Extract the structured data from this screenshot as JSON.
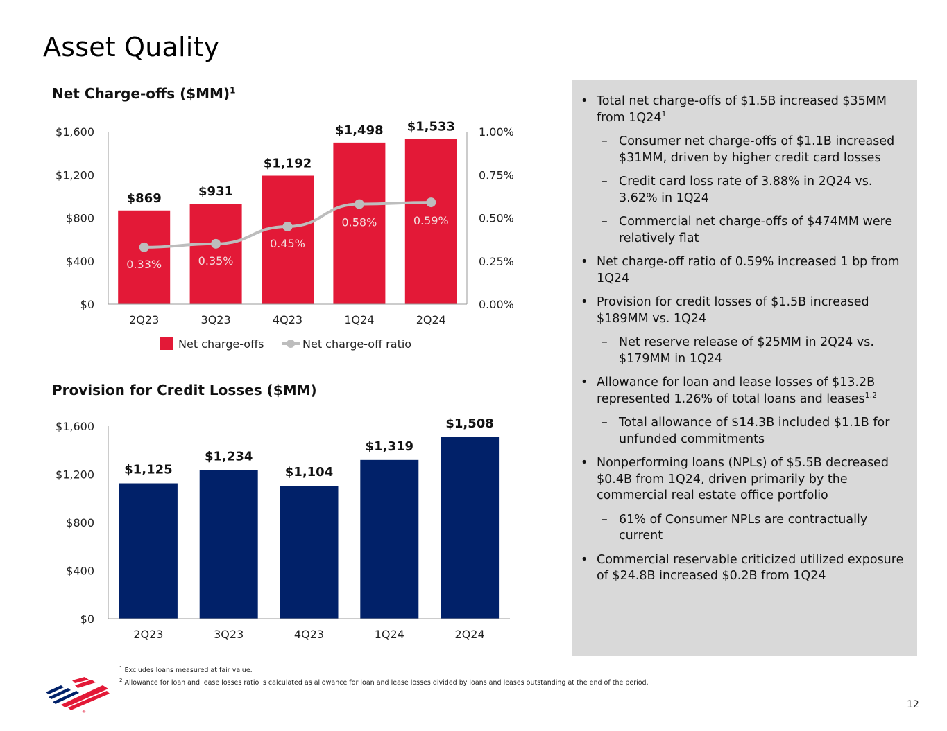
{
  "page": {
    "title": "Asset Quality",
    "page_number": "12"
  },
  "colors": {
    "nco_bar": "#e31937",
    "provision_bar": "#012169",
    "ratio_line": "#bdbdbd",
    "panel_bg": "#d9d9d9"
  },
  "logo": {
    "name": "bank-flag-logo",
    "mark": "®"
  },
  "chart_data": [
    {
      "id": "net-charge-offs",
      "type": "bar",
      "title": "Net Charge-offs ($MM)",
      "title_sup": "1",
      "categories": [
        "2Q23",
        "3Q23",
        "4Q23",
        "1Q24",
        "2Q24"
      ],
      "values": [
        869,
        931,
        1192,
        1498,
        1533
      ],
      "value_labels": [
        "$869",
        "$931",
        "$1,192",
        "$1,498",
        "$1,533"
      ],
      "ylim": [
        0,
        1600
      ],
      "yticks": [
        "$0",
        "$400",
        "$800",
        "$1,200",
        "$1,600"
      ],
      "y2lim": [
        0.0,
        1.0
      ],
      "y2ticks": [
        "0.00%",
        "0.25%",
        "0.50%",
        "0.75%",
        "1.00%"
      ],
      "line_series": {
        "name": "Net charge-off ratio",
        "values": [
          0.33,
          0.35,
          0.45,
          0.58,
          0.59
        ],
        "labels": [
          "0.33%",
          "0.35%",
          "0.45%",
          "0.58%",
          "0.59%"
        ]
      },
      "legend": [
        "Net charge-offs",
        "Net charge-off ratio"
      ]
    },
    {
      "id": "provision",
      "type": "bar",
      "title": "Provision for Credit Losses ($MM)",
      "categories": [
        "2Q23",
        "3Q23",
        "4Q23",
        "1Q24",
        "2Q24"
      ],
      "values": [
        1125,
        1234,
        1104,
        1319,
        1508
      ],
      "value_labels": [
        "$1,125",
        "$1,234",
        "$1,104",
        "$1,319",
        "$1,508"
      ],
      "ylim": [
        0,
        1600
      ],
      "yticks": [
        "$0",
        "$400",
        "$800",
        "$1,200",
        "$1,600"
      ]
    }
  ],
  "bullets": [
    {
      "text": "Total net charge-offs of $1.5B increased $35MM from 1Q24",
      "sup": "1",
      "subs": [
        {
          "text": "Consumer net charge-offs of $1.1B increased $31MM, driven by higher credit card losses"
        },
        {
          "text": "Credit card loss rate of 3.88% in 2Q24 vs. 3.62% in 1Q24"
        },
        {
          "text": "Commercial net charge-offs of $474MM were relatively flat"
        }
      ]
    },
    {
      "text": "Net charge-off ratio of 0.59% increased 1 bp from 1Q24",
      "subs": []
    },
    {
      "text": "Provision for credit losses of $1.5B increased $189MM vs. 1Q24",
      "subs": [
        {
          "text": "Net reserve release of $25MM in 2Q24 vs. $179MM in 1Q24"
        }
      ]
    },
    {
      "text": "Allowance for loan and lease losses of $13.2B represented 1.26% of total loans and leases",
      "sup": "1,2",
      "subs": [
        {
          "text": "Total allowance of $14.3B included $1.1B for unfunded commitments"
        }
      ]
    },
    {
      "text": "Nonperforming loans (NPLs) of $5.5B decreased $0.4B from 1Q24, driven primarily by the commercial real estate office portfolio",
      "subs": [
        {
          "text": "61% of Consumer NPLs are contractually current"
        }
      ]
    },
    {
      "text": "Commercial reservable criticized utilized exposure of $24.8B increased $0.2B from 1Q24",
      "subs": []
    }
  ],
  "footnotes": [
    {
      "sup": "1",
      "text": "Excludes loans measured at fair value."
    },
    {
      "sup": "2",
      "text": "Allowance for loan and lease losses ratio is calculated as allowance for loan and lease losses divided by loans and leases outstanding at the end of the period."
    }
  ]
}
